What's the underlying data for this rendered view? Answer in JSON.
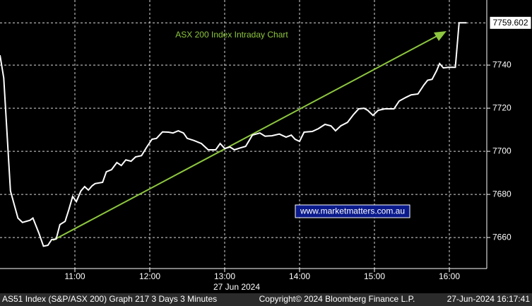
{
  "chart_data": {
    "type": "line",
    "title": "ASX 200 Index Intraday Chart",
    "title_color": "#8dc63f",
    "arrow_color": "#8dc63f",
    "x_label": "27 Jun 2024",
    "watermark": "www.marketmatters.com.au",
    "x": [
      10,
      10.05,
      10.14,
      10.24,
      10.3,
      10.4,
      10.44,
      10.52,
      10.58,
      10.64,
      10.69,
      10.75,
      10.8,
      10.87,
      10.92,
      10.97,
      11.02,
      11.08,
      11.13,
      11.18,
      11.23,
      11.27,
      11.37,
      11.42,
      11.49,
      11.56,
      11.62,
      11.68,
      11.75,
      11.81,
      11.89,
      11.96,
      12.03,
      12.09,
      12.17,
      12.25,
      12.31,
      12.38,
      12.45,
      12.5,
      12.59,
      12.69,
      12.78,
      12.88,
      12.94,
      13.0,
      13.07,
      13.13,
      13.21,
      13.28,
      13.37,
      13.47,
      13.54,
      13.63,
      13.73,
      13.82,
      13.89,
      13.94,
      14.0,
      14.06,
      14.17,
      14.25,
      14.34,
      14.42,
      14.48,
      14.55,
      14.64,
      14.72,
      14.79,
      14.86,
      14.91,
      14.98,
      15.05,
      15.14,
      15.26,
      15.33,
      15.42,
      15.49,
      15.58,
      15.66,
      15.71,
      15.77,
      15.83,
      15.87,
      15.92,
      15.99,
      16.08,
      16.13,
      16.23
    ],
    "series": [
      {
        "color": "#ffffff",
        "values": [
          7744.6,
          7734,
          7681.6,
          7669,
          7667,
          7668,
          7669,
          7662,
          7656,
          7656.4,
          7659,
          7659.3,
          7666,
          7667.5,
          7673,
          7679,
          7676.7,
          7681.6,
          7683.6,
          7682,
          7684,
          7685,
          7685.6,
          7690.5,
          7691.5,
          7694.8,
          7693.4,
          7696,
          7695.4,
          7697.4,
          7698,
          7702,
          7705.6,
          7706,
          7709,
          7708.9,
          7708.5,
          7709.5,
          7708.5,
          7706,
          7705,
          7703.6,
          7700.7,
          7700.7,
          7703.6,
          7701.3,
          7702,
          7700.7,
          7701.6,
          7702.3,
          7707.5,
          7708.5,
          7707,
          7707.2,
          7708,
          7706.6,
          7707.5,
          7705.6,
          7704.6,
          7708.9,
          7709.2,
          7710.5,
          7712.5,
          7711.8,
          7709.5,
          7711.8,
          7713.4,
          7717,
          7719.7,
          7720,
          7719,
          7716.7,
          7719,
          7719.7,
          7719.7,
          7723.3,
          7725,
          7726.2,
          7726.6,
          7730.8,
          7733,
          7733.4,
          7737.4,
          7740.7,
          7738.7,
          7739,
          7739,
          7759.602,
          7759.602
        ]
      }
    ],
    "xlim": [
      10,
      16.5
    ],
    "xticks": [
      {
        "value": 11,
        "label": "11:00"
      },
      {
        "value": 12,
        "label": "12:00"
      },
      {
        "value": 13,
        "label": "13:00"
      },
      {
        "value": 14,
        "label": "14:00"
      },
      {
        "value": 15,
        "label": "15:00"
      },
      {
        "value": 16,
        "label": "16:00"
      }
    ],
    "ylim": [
      7645.6,
      7770.2
    ],
    "yticks": [
      7660,
      7680,
      7700,
      7720,
      7740
    ],
    "grid": true
  },
  "footer": {
    "left": "AS51 Index (S&P/ASX 200) Graph 217 3 Days 3 Minutes",
    "center": "Copyright© 2024 Bloomberg Finance L.P.",
    "right": "27-Jun-2024 16:17:41"
  }
}
